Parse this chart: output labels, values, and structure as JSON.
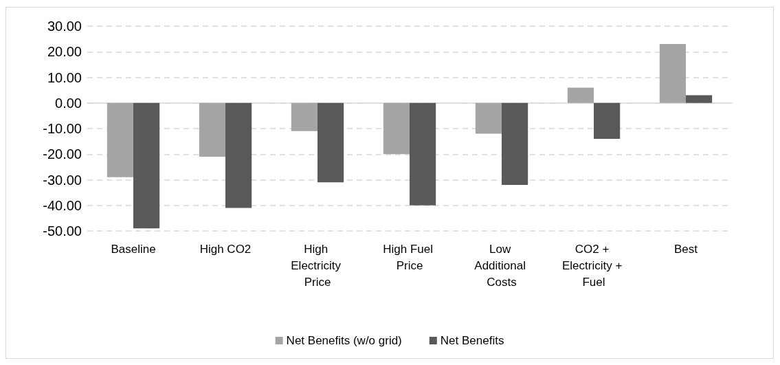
{
  "chart_data": {
    "type": "bar",
    "categories": [
      "Baseline",
      "High CO2",
      "High Electricity Price",
      "High Fuel Price",
      "Low Additional Costs",
      "CO2 + Electricity + Fuel",
      "Best"
    ],
    "series": [
      {
        "name": "Net Benefits (w/o grid)",
        "color": "#a5a5a5",
        "values": [
          -29,
          -21,
          -11,
          -20,
          -12,
          6,
          23
        ]
      },
      {
        "name": "Net Benefits",
        "color": "#595959",
        "values": [
          -49,
          -41,
          -31,
          -40,
          -32,
          -14,
          3
        ]
      }
    ],
    "ylim": [
      -50,
      30
    ],
    "yticks": [
      {
        "value": -50,
        "label": "-50.00"
      },
      {
        "value": -40,
        "label": "-40.00"
      },
      {
        "value": -30,
        "label": "-30.00"
      },
      {
        "value": -20,
        "label": "-20.00"
      },
      {
        "value": -10,
        "label": "-10.00"
      },
      {
        "value": 0,
        "label": "0.00"
      },
      {
        "value": 10,
        "label": "10.00"
      },
      {
        "value": 20,
        "label": "20.00"
      },
      {
        "value": 30,
        "label": "30.00"
      }
    ],
    "grid": "y",
    "legend": "bottom"
  }
}
